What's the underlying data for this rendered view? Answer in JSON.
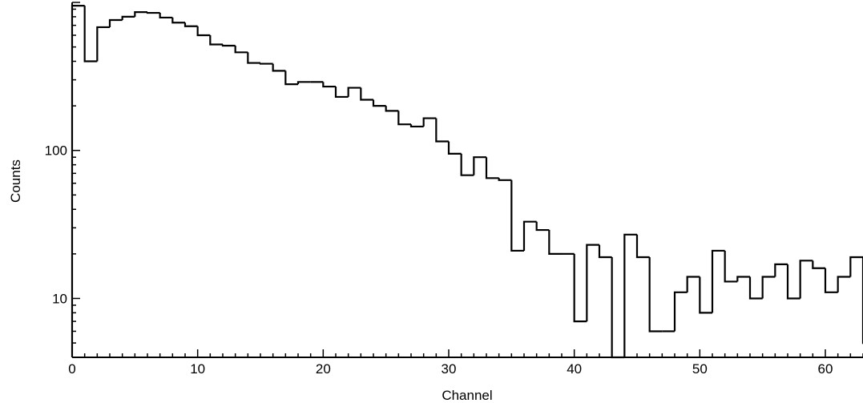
{
  "chart_data": {
    "type": "bar",
    "style": "step-histogram",
    "xlabel": "Channel",
    "ylabel": "Counts",
    "xlim": [
      0,
      63
    ],
    "ylim": [
      4,
      1000
    ],
    "yscale": "log",
    "grid": false,
    "line_color": "#000000",
    "x_ticks": [
      0,
      10,
      20,
      30,
      40,
      50,
      60
    ],
    "x_tick_labels": [
      "0",
      "10",
      "20",
      "30",
      "40",
      "50",
      "60"
    ],
    "y_ticks": [
      10,
      100
    ],
    "y_tick_labels": [
      "10",
      "100"
    ],
    "bin_edges_start": 0,
    "bin_width": 1,
    "values": [
      950,
      400,
      680,
      760,
      800,
      860,
      850,
      790,
      730,
      690,
      600,
      520,
      510,
      460,
      390,
      385,
      345,
      280,
      290,
      290,
      270,
      230,
      265,
      220,
      200,
      185,
      150,
      145,
      165,
      115,
      95,
      68,
      90,
      65,
      63,
      21,
      33,
      29,
      20,
      20,
      7,
      23,
      19,
      1,
      27,
      19,
      6,
      6,
      11,
      14,
      8,
      21,
      13,
      14,
      10,
      14,
      17,
      10,
      18,
      16,
      11,
      14,
      19,
      5
    ]
  }
}
